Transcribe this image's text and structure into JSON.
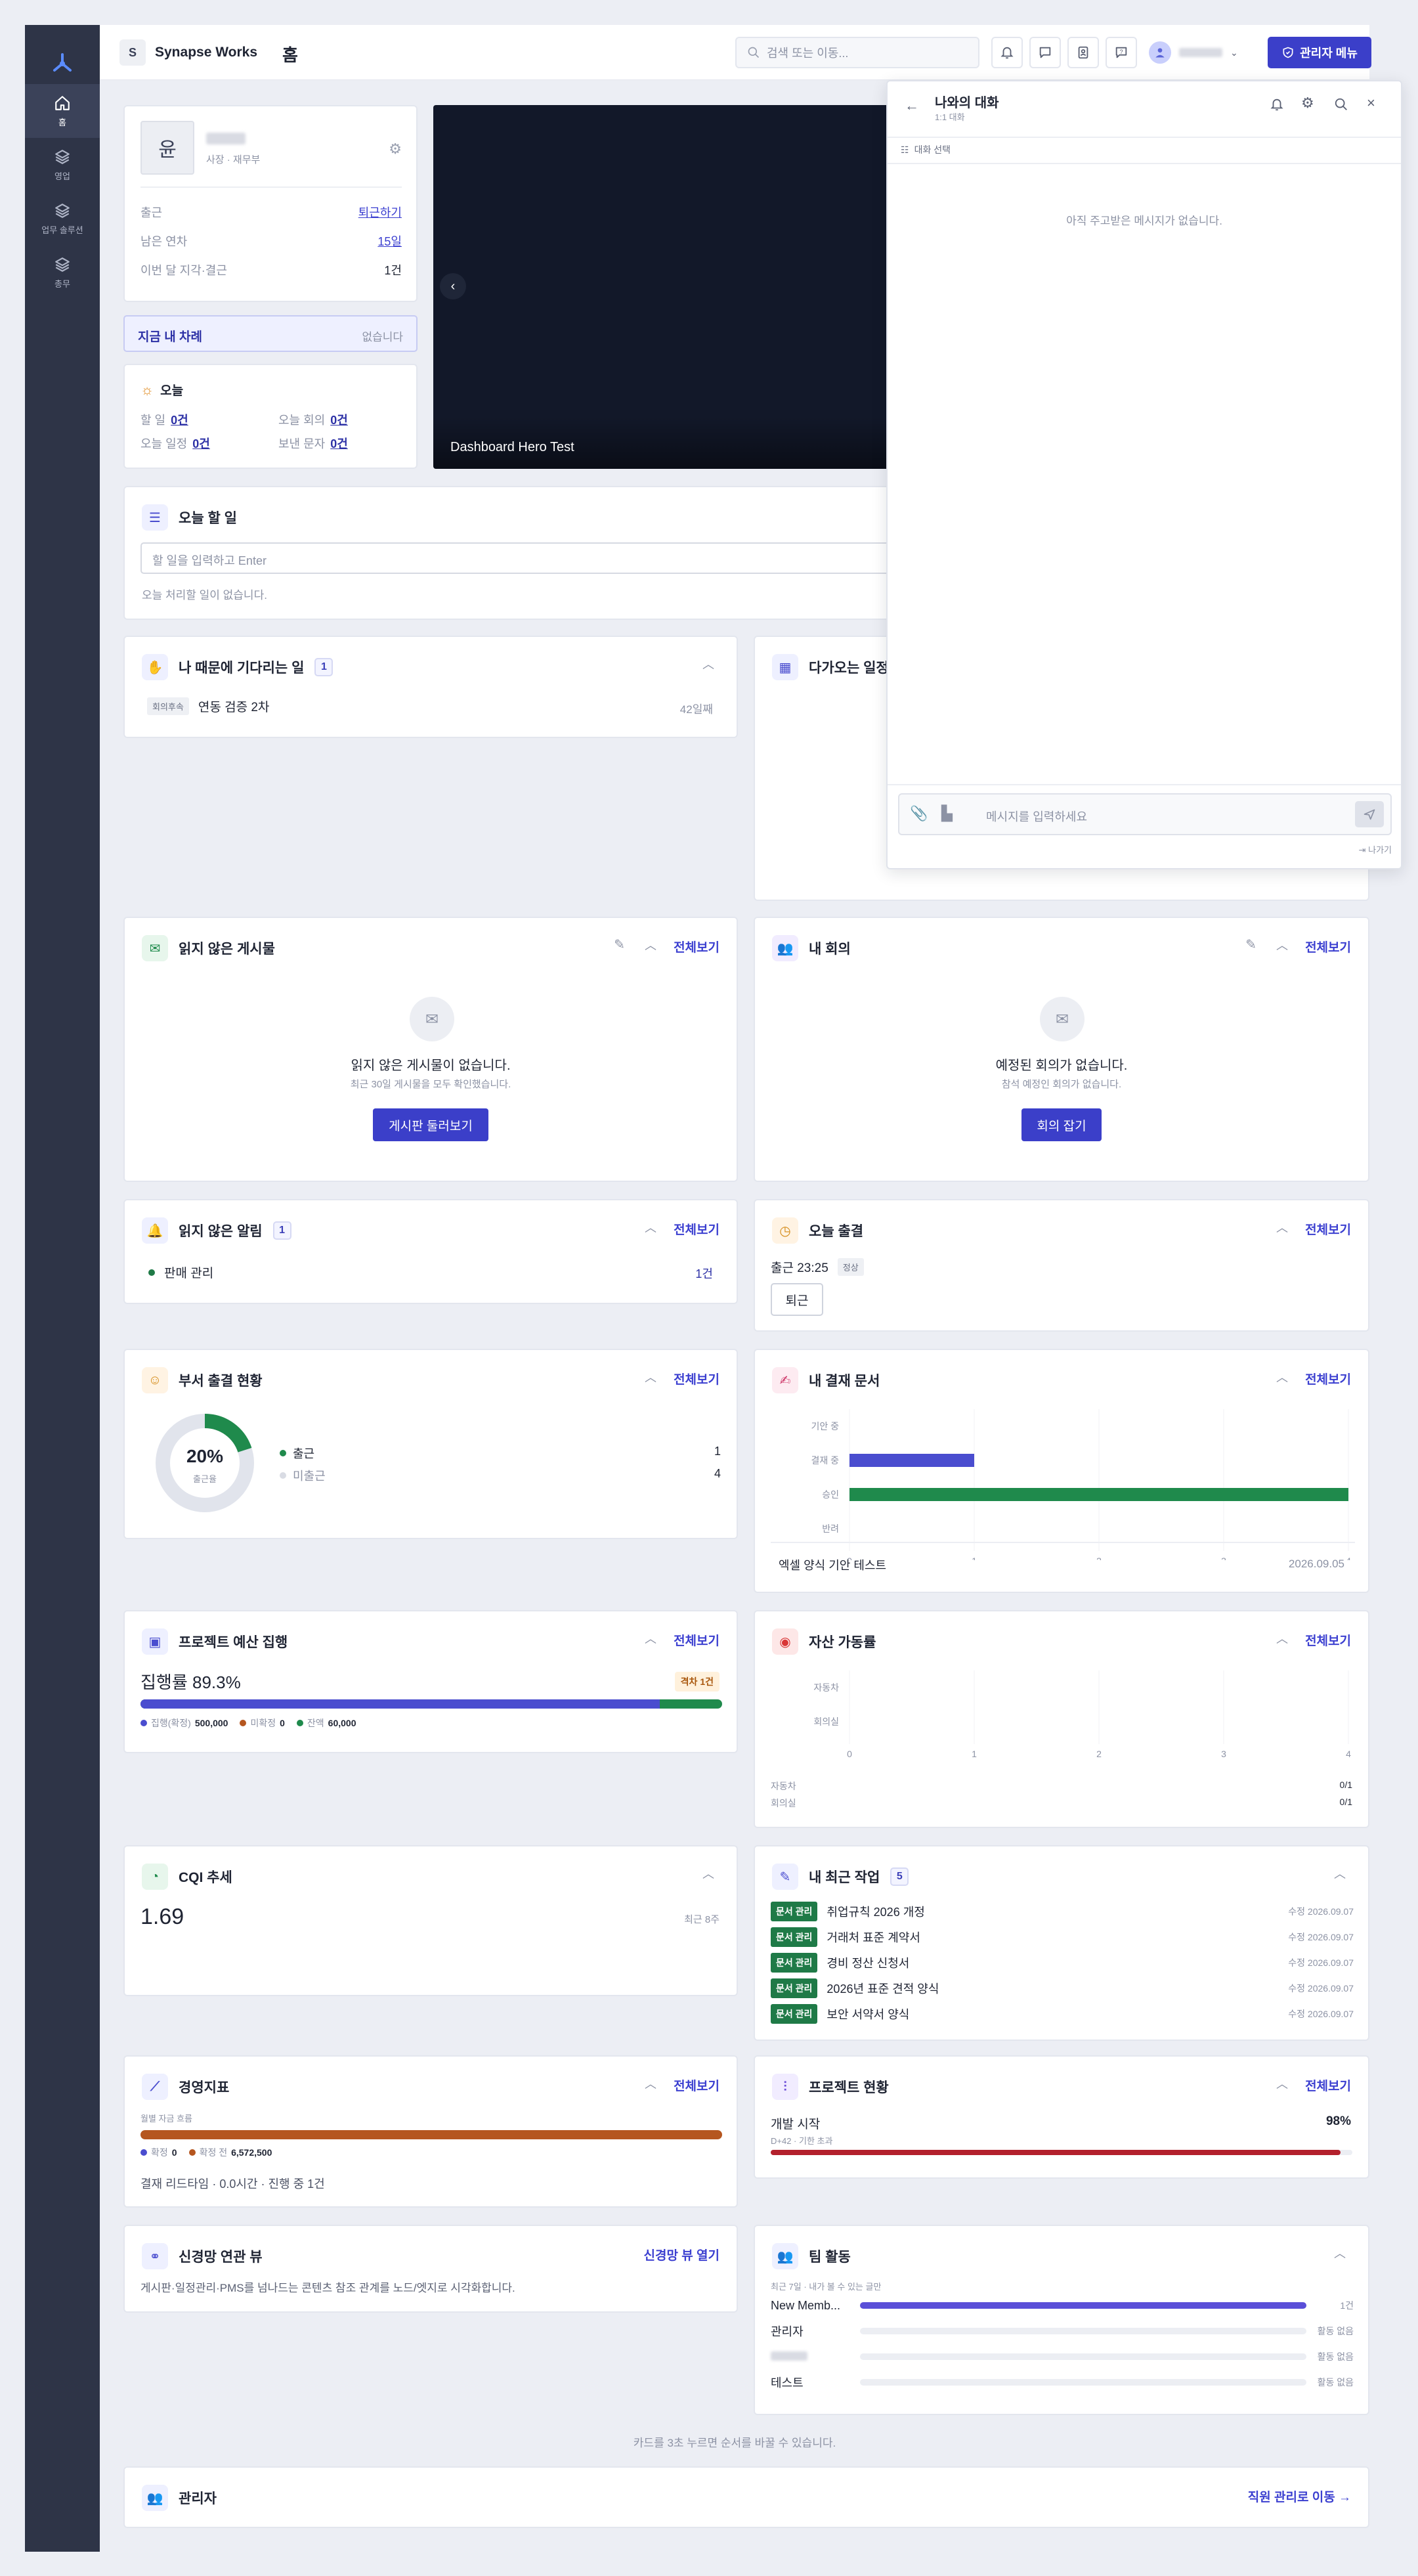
{
  "app": {
    "logo_letter": "S",
    "company": "Synapse Works",
    "page": "홈"
  },
  "sidebar": {
    "items": [
      {
        "label": "홈",
        "icon": "home-icon",
        "active": true
      },
      {
        "label": "영업",
        "icon": "layers-icon",
        "active": false
      },
      {
        "label": "업무 솔루션",
        "icon": "layers-icon",
        "active": false
      },
      {
        "label": "총무",
        "icon": "layers-icon",
        "active": false
      }
    ]
  },
  "header": {
    "search_placeholder": "검색 또는 이동...",
    "admin_menu": "관리자 메뉴"
  },
  "profile": {
    "avatar_char": "윤",
    "role": "사장 · 재무부",
    "rows": [
      {
        "label": "출근",
        "value": "퇴근하기"
      },
      {
        "label": "남은 연차",
        "value": "15일"
      },
      {
        "label": "이번 달 지각·결근",
        "value": "1건"
      }
    ]
  },
  "my_turn": {
    "label": "지금 내 차례",
    "status": "없습니다"
  },
  "today": {
    "title": "오늘",
    "items": [
      {
        "label": "할 일",
        "value": "0건"
      },
      {
        "label": "오늘 회의",
        "value": "0건"
      },
      {
        "label": "오늘 일정",
        "value": "0건"
      },
      {
        "label": "보낸 문자",
        "value": "0건"
      }
    ]
  },
  "hero": {
    "caption": "Dashboard Hero Test"
  },
  "todo": {
    "title": "오늘 할 일",
    "placeholder": "할 일을 입력하고 Enter",
    "empty": "오늘 처리할 일이 없습니다."
  },
  "waiting": {
    "title": "나 때문에 기다리는 일",
    "count": "1",
    "items": [
      {
        "tag": "회의후속",
        "title": "연동 검증 2차",
        "days": "42일째"
      }
    ]
  },
  "upcoming": {
    "title": "다가오는 일정"
  },
  "unread_posts": {
    "title": "읽지 않은 게시물",
    "viewall": "전체보기",
    "empty_title": "읽지 않은 게시물이 없습니다.",
    "empty_sub": "최근 30일 게시물을 모두 확인했습니다.",
    "button": "게시판 둘러보기"
  },
  "my_meetings": {
    "title": "내 회의",
    "viewall": "전체보기",
    "empty_title": "예정된 회의가 없습니다.",
    "empty_sub": "참석 예정인 회의가 없습니다.",
    "button": "회의 잡기"
  },
  "unread_alerts": {
    "title": "읽지 않은 알림",
    "count": "1",
    "viewall": "전체보기",
    "items": [
      {
        "label": "판매 관리",
        "value": "1건"
      }
    ]
  },
  "today_attendance": {
    "title": "오늘 출결",
    "viewall": "전체보기",
    "clock_in": "출근 23:25",
    "status": "정상",
    "button": "퇴근"
  },
  "dept_attendance": {
    "title": "부서 출결 현황",
    "viewall": "전체보기",
    "percent": "20%",
    "sub": "출근율",
    "rate": 0.2,
    "legend": [
      {
        "label": "출근",
        "value": "1",
        "color": "#1f8a4c"
      },
      {
        "label": "미출근",
        "value": "4",
        "color": "#d9dce4"
      }
    ]
  },
  "approval_docs": {
    "title": "내 결재 문서",
    "viewall": "전체보기",
    "chart_data": {
      "type": "bar",
      "orientation": "horizontal",
      "categories": [
        "기안 중",
        "결재 중",
        "승인",
        "반려"
      ],
      "values": [
        0,
        1,
        4,
        0
      ],
      "colors": [
        "#4a4dcf",
        "#4a4dcf",
        "#1f8a4c",
        "#4a4dcf"
      ],
      "xlim": [
        0,
        4
      ],
      "xticks": [
        "0",
        "1",
        "2",
        "3",
        "4"
      ]
    },
    "latest": {
      "title": "엑셀 양식 기안 테스트",
      "date": "2026.09.05"
    }
  },
  "project_budget": {
    "title": "프로젝트 예산 집행",
    "viewall": "전체보기",
    "rate": "집행률 89.3%",
    "alert": "격차 1건",
    "spent_frac": 0.893,
    "legend": [
      {
        "label": "집행(확정)",
        "value": "500,000",
        "color": "#4a4dcf"
      },
      {
        "label": "미확정",
        "value": "0",
        "color": "#b5561f"
      },
      {
        "label": "잔액",
        "value": "60,000",
        "color": "#1f8a4c"
      }
    ]
  },
  "asset_usage": {
    "title": "자산 가동률",
    "viewall": "전체보기",
    "chart_data": {
      "type": "bar",
      "orientation": "horizontal",
      "categories": [
        "자동차",
        "회의실"
      ],
      "values": [
        0,
        0
      ],
      "xlim": [
        0,
        4
      ],
      "xticks": [
        "0",
        "1",
        "2",
        "3",
        "4"
      ]
    },
    "rows": [
      {
        "label": "자동차",
        "value": "0/1"
      },
      {
        "label": "회의실",
        "value": "0/1"
      }
    ]
  },
  "cqi": {
    "title": "CQI 추세",
    "value": "1.69",
    "period": "최근 8주"
  },
  "recent_work": {
    "title": "내 최근 작업",
    "count": "5",
    "items": [
      {
        "tag": "문서 관리",
        "title": "취업규칙 2026 개정",
        "meta": "수정",
        "date": "2026.09.07"
      },
      {
        "tag": "문서 관리",
        "title": "거래처 표준 계약서",
        "meta": "수정",
        "date": "2026.09.07"
      },
      {
        "tag": "문서 관리",
        "title": "경비 정산 신청서",
        "meta": "수정",
        "date": "2026.09.07"
      },
      {
        "tag": "문서 관리",
        "title": "2026년 표준 견적 양식",
        "meta": "수정",
        "date": "2026.09.07"
      },
      {
        "tag": "문서 관리",
        "title": "보안 서약서 양식",
        "meta": "수정",
        "date": "2026.09.07"
      }
    ]
  },
  "kpi": {
    "title": "경영지표",
    "viewall": "전체보기",
    "sub": "월별 자금 흐름",
    "legend": [
      {
        "label": "확정",
        "value": "0",
        "color": "#4a4dcf"
      },
      {
        "label": "확정 전",
        "value": "6,572,500",
        "color": "#b5561f"
      }
    ],
    "footer": "결재 리드타임 · 0.0시간 · 진행 중 1건"
  },
  "project_status": {
    "title": "프로젝트 현황",
    "viewall": "전체보기",
    "name": "개발 시작",
    "percent": "98%",
    "progress": 0.98,
    "sub": "D+42 · 기한 초과"
  },
  "nerve_view": {
    "title": "신경망 연관 뷰",
    "link": "신경망 뷰 열기",
    "desc": "게시판·일정관리·PMS를 넘나드는 콘텐츠 참조 관계를 노드/엣지로 시각화합니다."
  },
  "team_activity": {
    "title": "팀 활동",
    "sub": "최근 7일 · 내가 볼 수 있는 글만",
    "members": [
      {
        "name": "New Memb...",
        "value": "1건",
        "frac": 1.0
      },
      {
        "name": "관리자",
        "value": "활동 없음",
        "frac": 0
      },
      {
        "name": "",
        "value": "활동 없음",
        "frac": 0
      },
      {
        "name": "테스트",
        "value": "활동 없음",
        "frac": 0
      }
    ]
  },
  "hint": "카드를 3초 누르면 순서를 바꿀 수 있습니다.",
  "admin": {
    "title": "관리자",
    "link": "직원 관리로 이동 →"
  },
  "chat": {
    "title": "나와의 대화",
    "sub": "1:1 대화",
    "select": "대화 선택",
    "empty": "아직 주고받은 메시지가 없습니다.",
    "input_placeholder": "메시지를 입력하세요",
    "exit": "나가기"
  }
}
